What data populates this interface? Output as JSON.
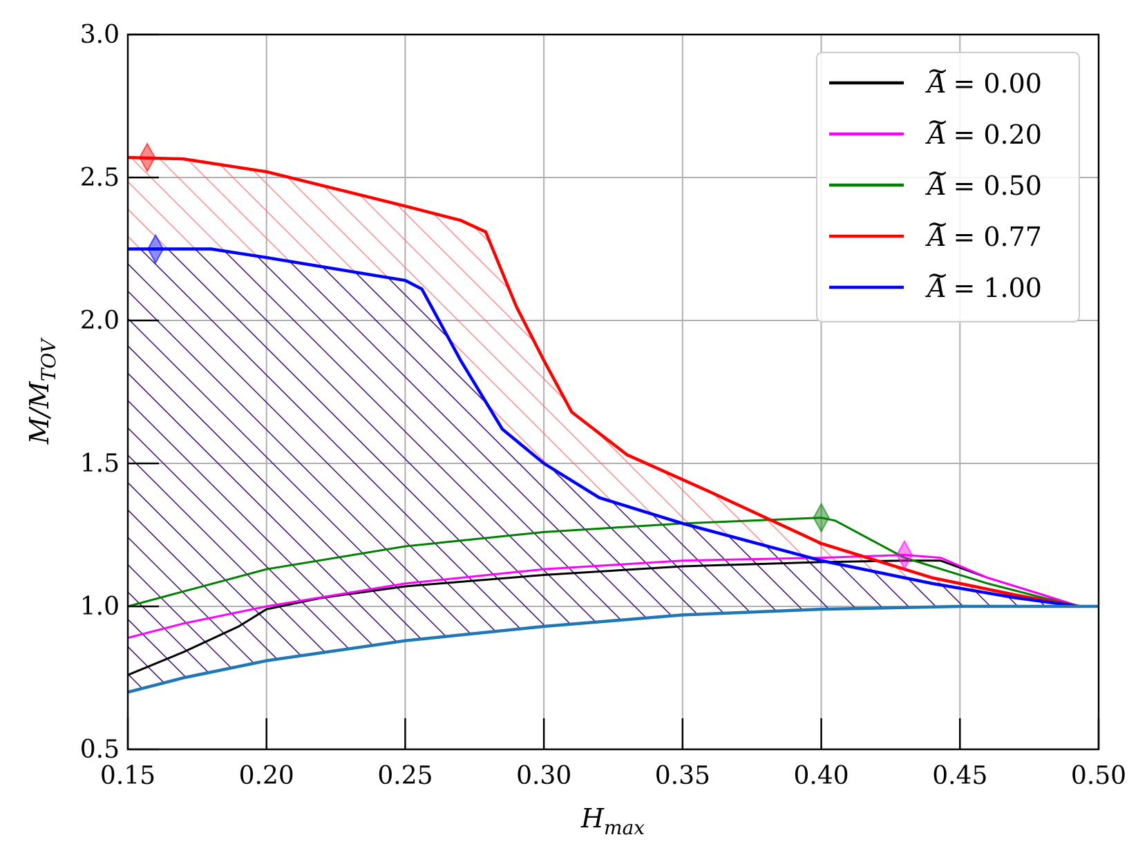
{
  "chart_data": {
    "type": "line",
    "xlabel": "H_max",
    "xlabel_base": "H",
    "xlabel_sub": "max",
    "ylabel": "M/M_TOV",
    "ylabel_base": "M/M",
    "ylabel_sub": "TOV",
    "xlim": [
      0.15,
      0.5
    ],
    "ylim": [
      0.5,
      3.0
    ],
    "xticks": [
      "0.15",
      "0.20",
      "0.25",
      "0.30",
      "0.35",
      "0.40",
      "0.45",
      "0.50"
    ],
    "yticks": [
      "0.5",
      "1.0",
      "1.5",
      "2.0",
      "2.5",
      "3.0"
    ],
    "grid": true,
    "legend_position": "top-right",
    "series": [
      {
        "name": "Ã = 0.00",
        "legend_lhs": "A",
        "legend_rhs": "= 0.00",
        "color": "#000000",
        "x": [
          0.15,
          0.17,
          0.19,
          0.2,
          0.22,
          0.25,
          0.3,
          0.35,
          0.4,
          0.43,
          0.443,
          0.46,
          0.48,
          0.493
        ],
        "y": [
          0.76,
          0.84,
          0.93,
          0.99,
          1.03,
          1.07,
          1.11,
          1.14,
          1.155,
          1.16,
          1.16,
          1.1,
          1.04,
          1.0
        ]
      },
      {
        "name": "Ã = 0.20",
        "legend_lhs": "A",
        "legend_rhs": "= 0.20",
        "color": "#ff00ff",
        "x": [
          0.15,
          0.17,
          0.2,
          0.25,
          0.3,
          0.35,
          0.4,
          0.43,
          0.443,
          0.46,
          0.48,
          0.493
        ],
        "y": [
          0.89,
          0.94,
          1.0,
          1.08,
          1.13,
          1.16,
          1.17,
          1.18,
          1.17,
          1.1,
          1.04,
          1.0
        ]
      },
      {
        "name": "Ã = 0.50",
        "legend_lhs": "A",
        "legend_rhs": "= 0.50",
        "color": "#008000",
        "x": [
          0.15,
          0.2,
          0.25,
          0.3,
          0.35,
          0.4,
          0.405,
          0.43,
          0.46,
          0.48,
          0.493
        ],
        "y": [
          1.0,
          1.13,
          1.21,
          1.26,
          1.29,
          1.31,
          1.3,
          1.17,
          1.08,
          1.03,
          1.0
        ]
      },
      {
        "name": "Ã = 0.77",
        "legend_lhs": "A",
        "legend_rhs": "= 0.77",
        "color": "#ff0000",
        "x": [
          0.15,
          0.17,
          0.2,
          0.25,
          0.27,
          0.279,
          0.29,
          0.3,
          0.31,
          0.33,
          0.36,
          0.4,
          0.44,
          0.47,
          0.493
        ],
        "y": [
          2.57,
          2.565,
          2.52,
          2.4,
          2.35,
          2.31,
          2.05,
          1.86,
          1.68,
          1.53,
          1.4,
          1.22,
          1.1,
          1.04,
          1.0
        ]
      },
      {
        "name": "Ã = 1.00",
        "legend_lhs": "A",
        "legend_rhs": "= 1.00",
        "color": "#0000ff",
        "x": [
          0.15,
          0.18,
          0.2,
          0.25,
          0.256,
          0.27,
          0.285,
          0.3,
          0.32,
          0.35,
          0.4,
          0.44,
          0.47,
          0.493
        ],
        "y": [
          2.25,
          2.25,
          2.22,
          2.14,
          2.11,
          1.86,
          1.62,
          1.5,
          1.38,
          1.29,
          1.16,
          1.08,
          1.03,
          1.0
        ]
      },
      {
        "name": "",
        "color": "#1f77b4",
        "x": [
          0.15,
          0.17,
          0.2,
          0.25,
          0.3,
          0.35,
          0.4,
          0.45,
          0.5
        ],
        "y": [
          0.7,
          0.75,
          0.81,
          0.88,
          0.93,
          0.97,
          0.99,
          1.0,
          1.0
        ]
      }
    ],
    "markers": [
      {
        "color": "#ff0000",
        "x": 0.157,
        "y": 2.57
      },
      {
        "color": "#0000ff",
        "x": 0.16,
        "y": 2.25
      },
      {
        "color": "#008000",
        "x": 0.4,
        "y": 1.31
      },
      {
        "color": "#ff00ff",
        "x": 0.43,
        "y": 1.18
      }
    ],
    "hatch_regions": [
      {
        "color": "#ff0000",
        "upper_series": 3,
        "lower_series": 4
      },
      {
        "color": "#3d0c7a",
        "upper_series": 4,
        "lower_series": 5
      }
    ]
  }
}
